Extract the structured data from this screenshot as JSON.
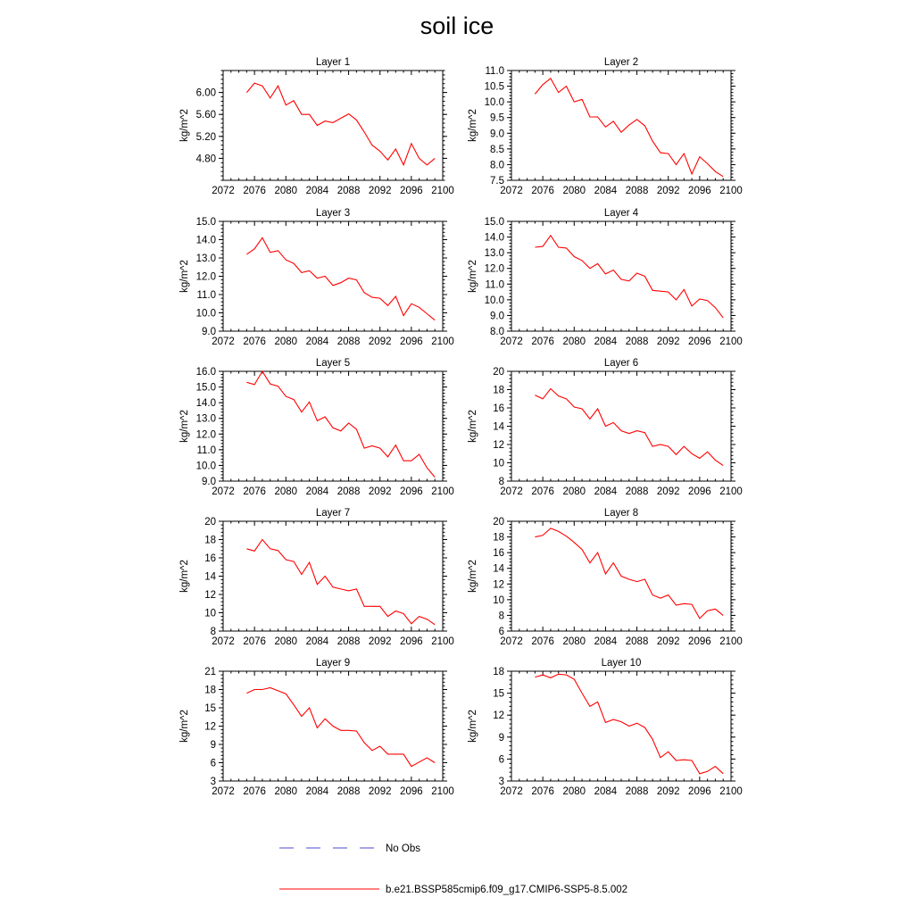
{
  "title": "soil ice",
  "legend": [
    {
      "label": "No Obs",
      "color": "#4b4bd2",
      "style": "dashed"
    },
    {
      "label": "b.e21.BSSP585cmip6.f09_g17.CMIP6-SSP5-8.5.002",
      "color": "#ff0000",
      "style": "solid"
    }
  ],
  "chart_data": [
    {
      "type": "line",
      "title": "Layer 1",
      "ylabel": "kg/m^2",
      "xlim": [
        2072,
        2100
      ],
      "ylim": [
        4.4,
        6.4
      ],
      "xticks": [
        2072,
        2076,
        2080,
        2084,
        2088,
        2092,
        2096,
        2100
      ],
      "yticks": [
        4.8,
        5.2,
        5.6,
        6.0
      ],
      "ytick_labels": [
        "4.80",
        "5.20",
        "5.60",
        "6.00"
      ],
      "series": [
        {
          "color": "#ff0000",
          "x": [
            2075,
            2076,
            2077,
            2078,
            2079,
            2080,
            2081,
            2082,
            2083,
            2084,
            2085,
            2086,
            2087,
            2088,
            2089,
            2090,
            2091,
            2092,
            2093,
            2094,
            2095,
            2096,
            2097,
            2098,
            2099
          ],
          "values": [
            6.0,
            6.17,
            6.12,
            5.9,
            6.12,
            5.77,
            5.85,
            5.6,
            5.6,
            5.4,
            5.48,
            5.45,
            5.53,
            5.61,
            5.5,
            5.28,
            5.04,
            4.93,
            4.77,
            4.97,
            4.68,
            5.07,
            4.8,
            4.68,
            4.8
          ]
        }
      ]
    },
    {
      "type": "line",
      "title": "Layer 2",
      "ylabel": "kg/m^2",
      "xlim": [
        2072,
        2100
      ],
      "ylim": [
        7.5,
        11.0
      ],
      "xticks": [
        2072,
        2076,
        2080,
        2084,
        2088,
        2092,
        2096,
        2100
      ],
      "yticks": [
        7.5,
        8.0,
        8.5,
        9.0,
        9.5,
        10.0,
        10.5,
        11.0
      ],
      "ytick_labels": [
        "7.5",
        "8.0",
        "8.5",
        "9.0",
        "9.5",
        "10.0",
        "10.5",
        "11.0"
      ],
      "series": [
        {
          "color": "#ff0000",
          "x": [
            2075,
            2076,
            2077,
            2078,
            2079,
            2080,
            2081,
            2082,
            2083,
            2084,
            2085,
            2086,
            2087,
            2088,
            2089,
            2090,
            2091,
            2092,
            2093,
            2094,
            2095,
            2096,
            2097,
            2098,
            2099
          ],
          "values": [
            10.25,
            10.55,
            10.75,
            10.3,
            10.5,
            10.0,
            10.08,
            9.52,
            9.52,
            9.2,
            9.38,
            9.03,
            9.26,
            9.44,
            9.24,
            8.75,
            8.38,
            8.35,
            8.0,
            8.35,
            7.7,
            8.25,
            8.03,
            7.78,
            7.62
          ]
        }
      ]
    },
    {
      "type": "line",
      "title": "Layer 3",
      "ylabel": "kg/m^2",
      "xlim": [
        2072,
        2100
      ],
      "ylim": [
        9.0,
        15.0
      ],
      "xticks": [
        2072,
        2076,
        2080,
        2084,
        2088,
        2092,
        2096,
        2100
      ],
      "yticks": [
        9,
        10,
        11,
        12,
        13,
        14,
        15
      ],
      "ytick_labels": [
        "9.0",
        "10.0",
        "11.0",
        "12.0",
        "13.0",
        "14.0",
        "15.0"
      ],
      "series": [
        {
          "color": "#ff0000",
          "x": [
            2075,
            2076,
            2077,
            2078,
            2079,
            2080,
            2081,
            2082,
            2083,
            2084,
            2085,
            2086,
            2087,
            2088,
            2089,
            2090,
            2091,
            2092,
            2093,
            2094,
            2095,
            2096,
            2097,
            2098,
            2099
          ],
          "values": [
            13.2,
            13.5,
            14.1,
            13.3,
            13.4,
            12.9,
            12.7,
            12.2,
            12.3,
            11.9,
            12.0,
            11.5,
            11.65,
            11.9,
            11.8,
            11.1,
            10.85,
            10.8,
            10.4,
            10.9,
            9.85,
            10.5,
            10.3,
            9.95,
            9.6
          ]
        }
      ]
    },
    {
      "type": "line",
      "title": "Layer 4",
      "ylabel": "kg/m^2",
      "xlim": [
        2072,
        2100
      ],
      "ylim": [
        8.0,
        15.0
      ],
      "xticks": [
        2072,
        2076,
        2080,
        2084,
        2088,
        2092,
        2096,
        2100
      ],
      "yticks": [
        8,
        9,
        10,
        11,
        12,
        13,
        14,
        15
      ],
      "ytick_labels": [
        "8.0",
        "9.0",
        "10.0",
        "11.0",
        "12.0",
        "13.0",
        "14.0",
        "15.0"
      ],
      "series": [
        {
          "color": "#ff0000",
          "x": [
            2075,
            2076,
            2077,
            2078,
            2079,
            2080,
            2081,
            2082,
            2083,
            2084,
            2085,
            2086,
            2087,
            2088,
            2089,
            2090,
            2091,
            2092,
            2093,
            2094,
            2095,
            2096,
            2097,
            2098,
            2099
          ],
          "values": [
            13.35,
            13.4,
            14.1,
            13.35,
            13.3,
            12.75,
            12.5,
            12.0,
            12.3,
            11.65,
            11.9,
            11.3,
            11.2,
            11.7,
            11.5,
            10.6,
            10.55,
            10.5,
            10.0,
            10.65,
            9.6,
            10.05,
            9.95,
            9.5,
            8.85
          ]
        }
      ]
    },
    {
      "type": "line",
      "title": "Layer 5",
      "ylabel": "kg/m^2",
      "xlim": [
        2072,
        2100
      ],
      "ylim": [
        9.0,
        16.0
      ],
      "xticks": [
        2072,
        2076,
        2080,
        2084,
        2088,
        2092,
        2096,
        2100
      ],
      "yticks": [
        9,
        10,
        11,
        12,
        13,
        14,
        15,
        16
      ],
      "ytick_labels": [
        "9.0",
        "10.0",
        "11.0",
        "12.0",
        "13.0",
        "14.0",
        "15.0",
        "16.0"
      ],
      "series": [
        {
          "color": "#ff0000",
          "x": [
            2075,
            2076,
            2077,
            2078,
            2079,
            2080,
            2081,
            2082,
            2083,
            2084,
            2085,
            2086,
            2087,
            2088,
            2089,
            2090,
            2091,
            2092,
            2093,
            2094,
            2095,
            2096,
            2097,
            2098,
            2099
          ],
          "values": [
            15.3,
            15.15,
            16.0,
            15.2,
            15.05,
            14.4,
            14.2,
            13.4,
            14.05,
            12.85,
            13.1,
            12.4,
            12.2,
            12.7,
            12.3,
            11.1,
            11.25,
            11.1,
            10.55,
            11.3,
            10.3,
            10.3,
            10.7,
            9.85,
            9.25
          ]
        }
      ]
    },
    {
      "type": "line",
      "title": "Layer 6",
      "ylabel": "kg/m^2",
      "xlim": [
        2072,
        2100
      ],
      "ylim": [
        8,
        20
      ],
      "xticks": [
        2072,
        2076,
        2080,
        2084,
        2088,
        2092,
        2096,
        2100
      ],
      "yticks": [
        8,
        10,
        12,
        14,
        16,
        18,
        20
      ],
      "ytick_labels": [
        "8",
        "10",
        "12",
        "14",
        "16",
        "18",
        "20"
      ],
      "series": [
        {
          "color": "#ff0000",
          "x": [
            2075,
            2076,
            2077,
            2078,
            2079,
            2080,
            2081,
            2082,
            2083,
            2084,
            2085,
            2086,
            2087,
            2088,
            2089,
            2090,
            2091,
            2092,
            2093,
            2094,
            2095,
            2096,
            2097,
            2098,
            2099
          ],
          "values": [
            17.4,
            17.0,
            18.1,
            17.3,
            17.0,
            16.1,
            15.9,
            14.8,
            15.9,
            14.0,
            14.4,
            13.5,
            13.2,
            13.5,
            13.3,
            11.8,
            12.0,
            11.8,
            10.9,
            11.8,
            11.0,
            10.5,
            11.2,
            10.3,
            9.7
          ]
        }
      ]
    },
    {
      "type": "line",
      "title": "Layer 7",
      "ylabel": "kg/m^2",
      "xlim": [
        2072,
        2100
      ],
      "ylim": [
        8,
        20
      ],
      "xticks": [
        2072,
        2076,
        2080,
        2084,
        2088,
        2092,
        2096,
        2100
      ],
      "yticks": [
        8,
        10,
        12,
        14,
        16,
        18,
        20
      ],
      "ytick_labels": [
        "8",
        "10",
        "12",
        "14",
        "16",
        "18",
        "20"
      ],
      "series": [
        {
          "color": "#ff0000",
          "x": [
            2075,
            2076,
            2077,
            2078,
            2079,
            2080,
            2081,
            2082,
            2083,
            2084,
            2085,
            2086,
            2087,
            2088,
            2089,
            2090,
            2091,
            2092,
            2093,
            2094,
            2095,
            2096,
            2097,
            2098,
            2099
          ],
          "values": [
            17.0,
            16.75,
            18.0,
            17.0,
            16.8,
            15.8,
            15.6,
            14.2,
            15.5,
            13.1,
            14.0,
            12.8,
            12.6,
            12.4,
            12.6,
            10.7,
            10.7,
            10.7,
            9.6,
            10.2,
            9.9,
            8.8,
            9.6,
            9.3,
            8.7
          ]
        }
      ]
    },
    {
      "type": "line",
      "title": "Layer 8",
      "ylabel": "kg/m^2",
      "xlim": [
        2072,
        2100
      ],
      "ylim": [
        6,
        20
      ],
      "xticks": [
        2072,
        2076,
        2080,
        2084,
        2088,
        2092,
        2096,
        2100
      ],
      "yticks": [
        6,
        8,
        10,
        12,
        14,
        16,
        18,
        20
      ],
      "ytick_labels": [
        "6",
        "8",
        "10",
        "12",
        "14",
        "16",
        "18",
        "20"
      ],
      "series": [
        {
          "color": "#ff0000",
          "x": [
            2075,
            2076,
            2077,
            2078,
            2079,
            2080,
            2081,
            2082,
            2083,
            2084,
            2085,
            2086,
            2087,
            2088,
            2089,
            2090,
            2091,
            2092,
            2093,
            2094,
            2095,
            2096,
            2097,
            2098,
            2099
          ],
          "values": [
            18.0,
            18.2,
            19.1,
            18.7,
            18.1,
            17.3,
            16.4,
            14.7,
            16.0,
            13.3,
            14.7,
            13.0,
            12.6,
            12.3,
            12.6,
            10.6,
            10.2,
            10.6,
            9.3,
            9.5,
            9.4,
            7.6,
            8.6,
            8.8,
            8.0
          ]
        }
      ]
    },
    {
      "type": "line",
      "title": "Layer 9",
      "ylabel": "kg/m^2",
      "xlim": [
        2072,
        2100
      ],
      "ylim": [
        3,
        21
      ],
      "xticks": [
        2072,
        2076,
        2080,
        2084,
        2088,
        2092,
        2096,
        2100
      ],
      "yticks": [
        3,
        6,
        9,
        12,
        15,
        18,
        21
      ],
      "ytick_labels": [
        "3",
        "6",
        "9",
        "12",
        "15",
        "18",
        "21"
      ],
      "series": [
        {
          "color": "#ff0000",
          "x": [
            2075,
            2076,
            2077,
            2078,
            2079,
            2080,
            2081,
            2082,
            2083,
            2084,
            2085,
            2086,
            2087,
            2088,
            2089,
            2090,
            2091,
            2092,
            2093,
            2094,
            2095,
            2096,
            2097,
            2098,
            2099
          ],
          "values": [
            17.4,
            18.0,
            18.0,
            18.3,
            17.8,
            17.3,
            15.5,
            13.6,
            15.0,
            11.7,
            13.2,
            12.0,
            11.3,
            11.3,
            11.2,
            9.3,
            8.0,
            8.7,
            7.4,
            7.4,
            7.4,
            5.4,
            6.1,
            6.8,
            6.0
          ]
        }
      ]
    },
    {
      "type": "line",
      "title": "Layer 10",
      "ylabel": "kg/m^2",
      "xlim": [
        2072,
        2100
      ],
      "ylim": [
        3,
        18
      ],
      "xticks": [
        2072,
        2076,
        2080,
        2084,
        2088,
        2092,
        2096,
        2100
      ],
      "yticks": [
        3,
        6,
        9,
        12,
        15,
        18
      ],
      "ytick_labels": [
        "3",
        "6",
        "9",
        "12",
        "15",
        "18"
      ],
      "series": [
        {
          "color": "#ff0000",
          "x": [
            2075,
            2076,
            2077,
            2078,
            2079,
            2080,
            2081,
            2082,
            2083,
            2084,
            2085,
            2086,
            2087,
            2088,
            2089,
            2090,
            2091,
            2092,
            2093,
            2094,
            2095,
            2096,
            2097,
            2098,
            2099
          ],
          "values": [
            17.2,
            17.5,
            17.1,
            17.6,
            17.5,
            16.9,
            15.0,
            13.2,
            13.8,
            11.0,
            11.4,
            11.1,
            10.5,
            10.9,
            10.3,
            8.7,
            6.2,
            7.0,
            5.8,
            5.9,
            5.8,
            4.0,
            4.3,
            5.0,
            4.0
          ]
        }
      ]
    }
  ]
}
